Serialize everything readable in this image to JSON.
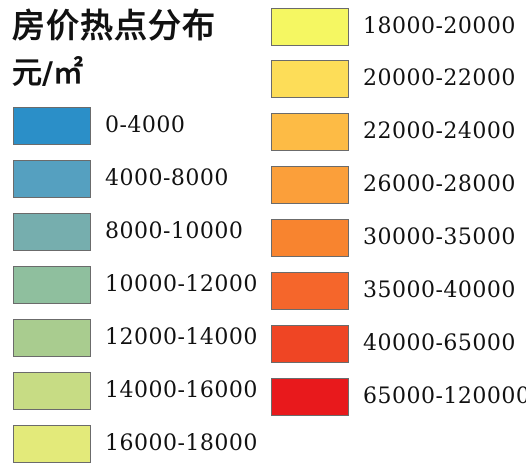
{
  "legend": {
    "title": "房价热点分布",
    "unit": "元/㎡",
    "left_column": [
      {
        "label": "0-4000",
        "color": "#2b8fc8"
      },
      {
        "label": "4000-8000",
        "color": "#55a0c0"
      },
      {
        "label": "8000-10000",
        "color": "#76aeae"
      },
      {
        "label": "10000-12000",
        "color": "#8fbf9e"
      },
      {
        "label": "12000-14000",
        "color": "#a9cc8f"
      },
      {
        "label": "14000-16000",
        "color": "#c7dc84"
      },
      {
        "label": "16000-18000",
        "color": "#e3ea7a"
      }
    ],
    "right_column": [
      {
        "label": "18000-20000",
        "color": "#f5f762"
      },
      {
        "label": "20000-22000",
        "color": "#fddd58"
      },
      {
        "label": "22000-24000",
        "color": "#fdbb45"
      },
      {
        "label": "26000-28000",
        "color": "#fb9f3a"
      },
      {
        "label": "30000-35000",
        "color": "#f8842f"
      },
      {
        "label": "35000-40000",
        "color": "#f5662b"
      },
      {
        "label": "40000-65000",
        "color": "#ef4524"
      },
      {
        "label": "65000-120000",
        "color": "#e8191c"
      }
    ]
  }
}
